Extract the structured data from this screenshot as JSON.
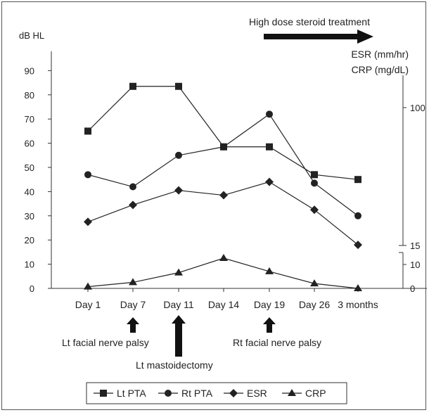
{
  "chart_data": {
    "type": "line",
    "categories": [
      "Day 1",
      "Day 7",
      "Day 11",
      "Day 14",
      "Day 19",
      "Day 26",
      "3 months"
    ],
    "left_axis": {
      "label": "dB HL",
      "ylim": [
        0,
        90
      ],
      "ticks": [
        "0",
        "10",
        "20",
        "30",
        "40",
        "50",
        "60",
        "70",
        "80",
        "90"
      ]
    },
    "right_axis": {
      "label_lines": [
        "ESR (mm/hr)",
        "CRP (mg/dL)"
      ],
      "upper_ticks": [
        "15",
        "100"
      ],
      "lower_ticks": [
        "0",
        "10"
      ],
      "note": "broken axis: lower segment 0-12 (CRP), upper segment 15-~110 (ESR)"
    },
    "series": [
      {
        "name": "Lt PTA",
        "marker": "square",
        "axis": "left",
        "values": [
          65,
          83.5,
          83.5,
          58.5,
          58.5,
          47,
          45
        ]
      },
      {
        "name": "Rt PTA",
        "marker": "circle",
        "axis": "left",
        "values": [
          47,
          42,
          55,
          58.5,
          72,
          43.5,
          30
        ]
      },
      {
        "name": "ESR",
        "marker": "diamond",
        "axis": "left",
        "values": [
          27.5,
          34.5,
          40.5,
          38.5,
          44,
          32.5,
          18
        ]
      },
      {
        "name": "CRP",
        "marker": "triangle",
        "axis": "left",
        "values": [
          0.7,
          2.5,
          6.5,
          12.5,
          7,
          2,
          0
        ]
      }
    ],
    "annotations": {
      "treatment": {
        "label": "High dose steroid treatment"
      },
      "events": [
        {
          "label": "Lt facial nerve palsy",
          "at": "Day 7"
        },
        {
          "label": "Lt mastoidectomy",
          "at": "Day 11"
        },
        {
          "label": "Rt facial nerve palsy",
          "at": "Day 19"
        }
      ]
    },
    "legend": {
      "placement": "bottom-center"
    }
  }
}
